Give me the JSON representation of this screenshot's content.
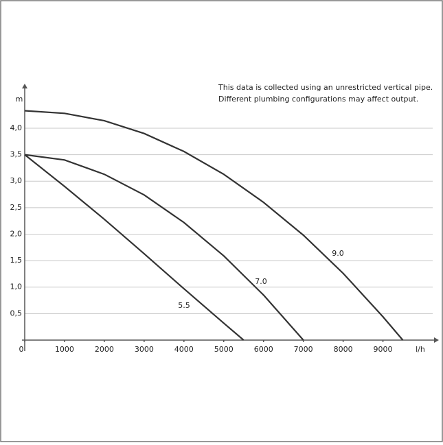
{
  "chart_data": {
    "type": "line",
    "annotation": [
      "This data is collected using an unrestricted vertical pipe.",
      "Different plumbing configurations may affect output."
    ],
    "xlabel": "l/h",
    "ylabel": "m",
    "xlim": [
      0,
      10250
    ],
    "ylim": [
      0,
      4.75
    ],
    "xticks": [
      0,
      1000,
      2000,
      3000,
      4000,
      5000,
      6000,
      7000,
      8000,
      9000
    ],
    "yticks": [
      {
        "value": 0.5,
        "label": "0,5"
      },
      {
        "value": 1.0,
        "label": "1,0"
      },
      {
        "value": 1.5,
        "label": "1,5"
      },
      {
        "value": 2.0,
        "label": "2,0"
      },
      {
        "value": 2.5,
        "label": "2,5"
      },
      {
        "value": 3.0,
        "label": "3,0"
      },
      {
        "value": 3.5,
        "label": "3,5"
      },
      {
        "value": 4.0,
        "label": "4,0"
      }
    ],
    "grid": true,
    "series": [
      {
        "name": "5.5",
        "color": "#333333",
        "x": [
          0,
          1000,
          2000,
          3000,
          4000,
          5000,
          5500
        ],
        "values": [
          3.5,
          2.9,
          2.28,
          1.63,
          0.97,
          0.32,
          0
        ]
      },
      {
        "name": "7.0",
        "color": "#333333",
        "x": [
          0,
          1000,
          2000,
          3000,
          4000,
          5000,
          6000,
          7000
        ],
        "values": [
          3.5,
          3.4,
          3.13,
          2.74,
          2.22,
          1.59,
          0.85,
          0
        ]
      },
      {
        "name": "9.0",
        "color": "#333333",
        "x": [
          0,
          1000,
          2000,
          3000,
          4000,
          5000,
          6000,
          7000,
          8000,
          9000,
          9500
        ],
        "values": [
          4.33,
          4.28,
          4.14,
          3.9,
          3.56,
          3.13,
          2.6,
          1.98,
          1.26,
          0.44,
          0
        ]
      }
    ]
  }
}
